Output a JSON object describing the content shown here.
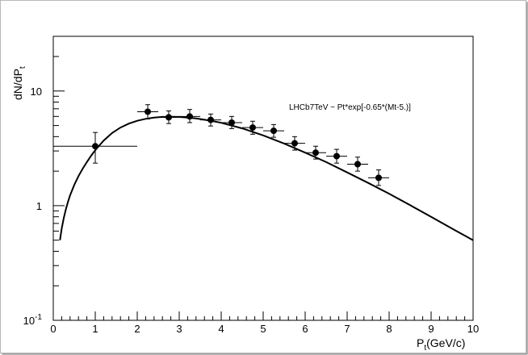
{
  "chart_data": {
    "type": "scatter",
    "xlabel_main": "P",
    "xlabel_sub": "t",
    "xlabel_rest": "(GeV/c)",
    "ylabel_main": "dN/dP",
    "ylabel_sub": "t",
    "xlim": [
      0,
      10
    ],
    "ylim": [
      0.1,
      30
    ],
    "y_scale": "log",
    "grid": false,
    "x_ticks": [
      {
        "value": 0,
        "label": "0"
      },
      {
        "value": 1,
        "label": "1"
      },
      {
        "value": 2,
        "label": "2"
      },
      {
        "value": 3,
        "label": "3"
      },
      {
        "value": 4,
        "label": "4"
      },
      {
        "value": 5,
        "label": "5"
      },
      {
        "value": 6,
        "label": "6"
      },
      {
        "value": 7,
        "label": "7"
      },
      {
        "value": 8,
        "label": "8"
      },
      {
        "value": 9,
        "label": "9"
      },
      {
        "value": 10,
        "label": "10"
      }
    ],
    "y_ticks": [
      {
        "value": 0.1,
        "label_base": "10",
        "label_exp": "-1"
      },
      {
        "value": 1,
        "label_base": "1",
        "label_exp": ""
      },
      {
        "value": 10,
        "label_base": "10",
        "label_exp": ""
      }
    ],
    "annotation": "LHCb7TeV ~ Pt*exp[-0.65*(Mt-5.)]",
    "points": [
      {
        "x": 1.0,
        "y": 3.3,
        "xerr": 1.0,
        "ylo": 2.35,
        "yhi": 4.35
      },
      {
        "x": 2.25,
        "y": 6.6,
        "xerr": 0.25,
        "ylo": 5.7,
        "yhi": 7.6
      },
      {
        "x": 2.75,
        "y": 5.9,
        "xerr": 0.25,
        "ylo": 5.2,
        "yhi": 6.7
      },
      {
        "x": 3.25,
        "y": 6.0,
        "xerr": 0.25,
        "ylo": 5.3,
        "yhi": 6.9
      },
      {
        "x": 3.75,
        "y": 5.6,
        "xerr": 0.25,
        "ylo": 4.95,
        "yhi": 6.3
      },
      {
        "x": 4.25,
        "y": 5.3,
        "xerr": 0.25,
        "ylo": 4.7,
        "yhi": 6.0
      },
      {
        "x": 4.75,
        "y": 4.8,
        "xerr": 0.25,
        "ylo": 4.2,
        "yhi": 5.45
      },
      {
        "x": 5.25,
        "y": 4.5,
        "xerr": 0.25,
        "ylo": 3.95,
        "yhi": 5.1
      },
      {
        "x": 5.75,
        "y": 3.5,
        "xerr": 0.25,
        "ylo": 3.05,
        "yhi": 4.0
      },
      {
        "x": 6.25,
        "y": 2.9,
        "xerr": 0.25,
        "ylo": 2.55,
        "yhi": 3.3
      },
      {
        "x": 6.75,
        "y": 2.7,
        "xerr": 0.25,
        "ylo": 2.35,
        "yhi": 3.1
      },
      {
        "x": 7.25,
        "y": 2.3,
        "xerr": 0.25,
        "ylo": 2.0,
        "yhi": 2.65
      },
      {
        "x": 7.75,
        "y": 1.75,
        "xerr": 0.25,
        "ylo": 1.5,
        "yhi": 2.05
      }
    ],
    "fit_curve": {
      "x": [
        0.16,
        0.2,
        0.25,
        0.3,
        0.35,
        0.4,
        0.5,
        0.6,
        0.7,
        0.8,
        0.9,
        1.0,
        1.2,
        1.4,
        1.6,
        1.8,
        2.0,
        2.2,
        2.4,
        2.6,
        2.8,
        3.0,
        3.2,
        3.4,
        3.6,
        3.8,
        4.0,
        4.5,
        5.0,
        5.5,
        6.0,
        6.5,
        7.0,
        7.5,
        8.0,
        8.5,
        9.0,
        9.5,
        10.0
      ],
      "y": [
        0.5,
        0.63,
        0.78,
        0.93,
        1.08,
        1.23,
        1.52,
        1.81,
        2.1,
        2.4,
        2.72,
        3.05,
        3.7,
        4.3,
        4.8,
        5.2,
        5.5,
        5.72,
        5.86,
        5.94,
        5.96,
        5.94,
        5.87,
        5.76,
        5.62,
        5.46,
        5.28,
        4.72,
        4.1,
        3.48,
        2.9,
        2.4,
        1.95,
        1.58,
        1.27,
        1.01,
        0.8,
        0.63,
        0.5
      ]
    }
  }
}
